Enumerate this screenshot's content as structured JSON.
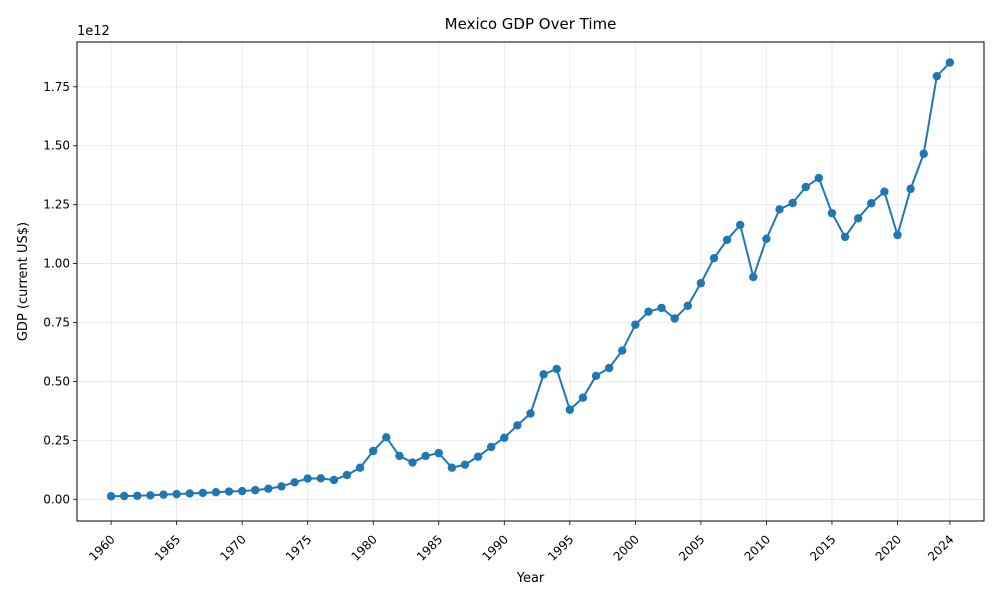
{
  "chart_data": {
    "type": "line",
    "title": "Mexico GDP Over Time",
    "xlabel": "Year",
    "ylabel": "GDP (current US$)",
    "y_offset_label": "1e12",
    "y_scale_factor": 1000000000000,
    "xlim": [
      1957.4,
      2026.6
    ],
    "ylim": [
      -0.092,
      1.94
    ],
    "x_ticks": [
      1960,
      1965,
      1970,
      1975,
      1980,
      1985,
      1990,
      1995,
      2000,
      2005,
      2010,
      2015,
      2020,
      2024
    ],
    "y_ticks": [
      0.0,
      0.25,
      0.5,
      0.75,
      1.0,
      1.25,
      1.5,
      1.75
    ],
    "y_tick_labels": [
      "0.00",
      "0.25",
      "0.50",
      "0.75",
      "1.00",
      "1.25",
      "1.50",
      "1.75"
    ],
    "grid": true,
    "series": [
      {
        "color": "#1f77b4",
        "marker": "circle",
        "x": [
          1960,
          1961,
          1962,
          1963,
          1964,
          1965,
          1966,
          1967,
          1968,
          1969,
          1970,
          1971,
          1972,
          1973,
          1974,
          1975,
          1976,
          1977,
          1978,
          1979,
          1980,
          1981,
          1982,
          1983,
          1984,
          1985,
          1986,
          1987,
          1988,
          1989,
          1990,
          1991,
          1992,
          1993,
          1994,
          1995,
          1996,
          1997,
          1998,
          1999,
          2000,
          2001,
          2002,
          2003,
          2004,
          2005,
          2006,
          2007,
          2008,
          2009,
          2010,
          2011,
          2012,
          2013,
          2014,
          2015,
          2016,
          2017,
          2018,
          2019,
          2020,
          2021,
          2022,
          2023,
          2024
        ],
        "values": [
          0.013,
          0.014,
          0.015,
          0.017,
          0.02,
          0.022,
          0.025,
          0.027,
          0.03,
          0.033,
          0.035,
          0.039,
          0.045,
          0.055,
          0.072,
          0.088,
          0.089,
          0.082,
          0.103,
          0.134,
          0.205,
          0.263,
          0.184,
          0.156,
          0.184,
          0.196,
          0.134,
          0.147,
          0.181,
          0.222,
          0.261,
          0.314,
          0.364,
          0.53,
          0.553,
          0.38,
          0.431,
          0.524,
          0.557,
          0.631,
          0.741,
          0.796,
          0.812,
          0.767,
          0.821,
          0.917,
          1.023,
          1.101,
          1.164,
          0.943,
          1.105,
          1.23,
          1.257,
          1.325,
          1.363,
          1.214,
          1.113,
          1.192,
          1.256,
          1.305,
          1.121,
          1.317,
          1.466,
          1.795,
          1.853
        ]
      }
    ]
  }
}
